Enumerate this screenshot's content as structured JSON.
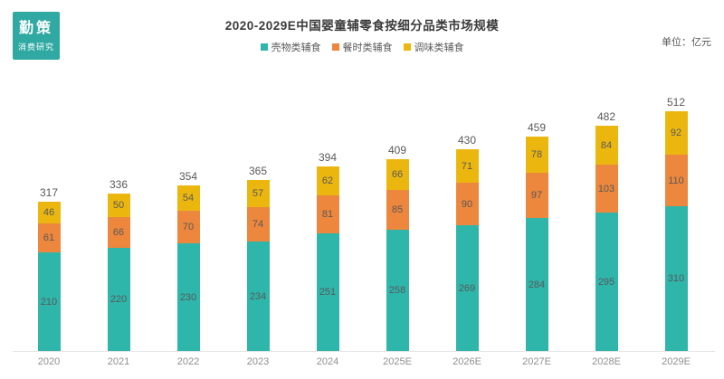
{
  "logo": {
    "line1": "勤策",
    "line2": "消费研究",
    "bg_color": "#2fa9a2"
  },
  "header": {
    "title": "2020-2029E中国婴童辅零食按细分品类市场规模",
    "unit_label": "单位：亿元"
  },
  "legend": {
    "items": [
      {
        "label": "壳物类辅食",
        "color": "#2eb6ab"
      },
      {
        "label": "餐时类辅食",
        "color": "#ec873d"
      },
      {
        "label": "调味类辅食",
        "color": "#ebb70f"
      }
    ]
  },
  "chart_data": {
    "type": "bar",
    "stacked": true,
    "title": "2020-2029E中国婴童辅零食按细分品类市场规模",
    "unit": "亿元",
    "categories": [
      "2020",
      "2021",
      "2022",
      "2023",
      "2024",
      "2025E",
      "2026E",
      "2027E",
      "2028E",
      "2029E"
    ],
    "series": [
      {
        "name": "壳物类辅食",
        "color": "#2eb6ab",
        "values": [
          210,
          220,
          230,
          234,
          251,
          258,
          269,
          284,
          295,
          310
        ]
      },
      {
        "name": "餐时类辅食",
        "color": "#ec873d",
        "values": [
          61,
          66,
          70,
          74,
          81,
          85,
          90,
          97,
          103,
          110
        ]
      },
      {
        "name": "调味类辅食",
        "color": "#ebb70f",
        "values": [
          46,
          50,
          54,
          57,
          62,
          66,
          71,
          78,
          84,
          92
        ]
      }
    ],
    "totals": [
      317,
      336,
      354,
      365,
      394,
      409,
      430,
      459,
      482,
      512
    ],
    "ylim": [
      0,
      512
    ],
    "grid": false,
    "legend_position": "top",
    "data_labels": "inside-segments-and-total-on-top",
    "axis_label_color": "#8f8f8f",
    "label_color": "#595959"
  }
}
